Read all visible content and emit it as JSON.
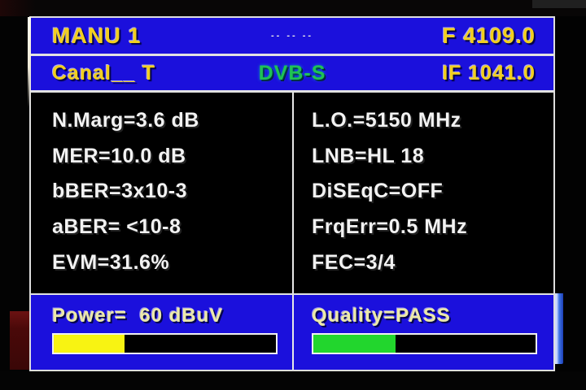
{
  "colors": {
    "panel-blue": "#1b10dc",
    "header-yellow": "#f2cf1e",
    "standard-green": "#1fc254",
    "value-white": "#f2f2f2",
    "label-cream": "#ece9a9",
    "bar-yellow": "#f8f312",
    "bar-green": "#22d62d"
  },
  "header": {
    "title": "MANU 1",
    "center_marks": "-- -- --",
    "frequency": "F 4109.0",
    "channel": "Canal__ T",
    "standard": "DVB-S",
    "if_frequency": "IF 1041.0"
  },
  "measurements": {
    "left": [
      "N.Marg=3.6 dB",
      "MER=10.0 dB",
      "bBER=3x10-3",
      "aBER= <10-8",
      "EVM=31.6%"
    ],
    "right": [
      "L.O.=5150 MHz",
      "LNB=HL 18",
      "DiSEqC=OFF",
      "FrqErr=0.5 MHz",
      "FEC=3/4"
    ]
  },
  "power": {
    "label": "Power=  60 dBuV",
    "percent": 32
  },
  "quality": {
    "label": "Quality=PASS",
    "percent": 37
  }
}
